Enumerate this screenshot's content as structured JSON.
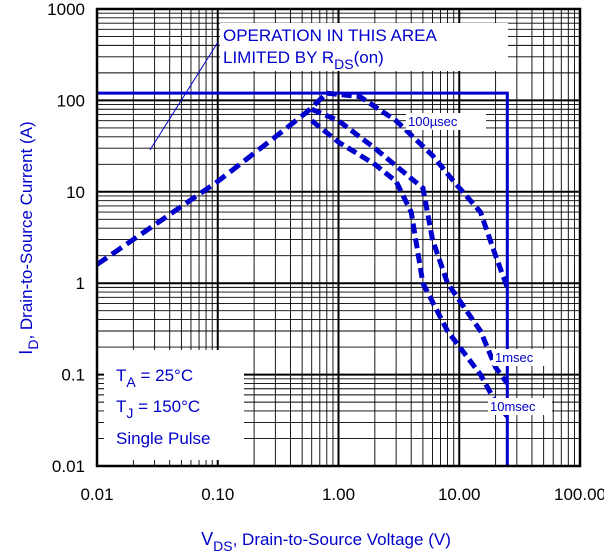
{
  "chart_data": {
    "type": "line",
    "x_scale": "log",
    "y_scale": "log",
    "xlim": [
      0.01,
      100
    ],
    "ylim": [
      0.01,
      1000
    ],
    "grid": true,
    "xlabel": {
      "main": "V",
      "sub": "DS",
      "rest": ", Drain-to-Source Voltage (V)"
    },
    "ylabel": {
      "main": "I",
      "sub": "D",
      "rest": ",  Drain-to-Source Current (A)"
    },
    "xticks": [
      {
        "value": 0.01,
        "label": "0.01"
      },
      {
        "value": 0.1,
        "label": "0.10"
      },
      {
        "value": 1,
        "label": "1.00"
      },
      {
        "value": 10,
        "label": "10.00"
      },
      {
        "value": 100,
        "label": "100.00"
      }
    ],
    "yticks": [
      {
        "value": 0.01,
        "label": "0.01"
      },
      {
        "value": 0.1,
        "label": "0.1"
      },
      {
        "value": 1,
        "label": "1"
      },
      {
        "value": 10,
        "label": "10"
      },
      {
        "value": 100,
        "label": "100"
      },
      {
        "value": 1000,
        "label": "1000"
      }
    ],
    "limits": {
      "current_limit_A": 120,
      "voltage_limit_V": 25,
      "rds_on_line": [
        [
          0.01,
          1.6
        ],
        [
          0.1,
          13
        ],
        [
          0.3,
          40
        ],
        [
          0.55,
          75
        ],
        [
          0.8,
          120
        ]
      ]
    },
    "series": [
      {
        "name": "100µsec",
        "points": [
          [
            0.8,
            120
          ],
          [
            1.5,
            110
          ],
          [
            3,
            60
          ],
          [
            6,
            25
          ],
          [
            9,
            13
          ],
          [
            15,
            6
          ],
          [
            20,
            2
          ],
          [
            25,
            0.9
          ]
        ]
      },
      {
        "name": "1msec",
        "points": [
          [
            0.6,
            80
          ],
          [
            1,
            60
          ],
          [
            2,
            30
          ],
          [
            4,
            14
          ],
          [
            5,
            11
          ],
          [
            6,
            3
          ],
          [
            8,
            1
          ],
          [
            15,
            0.3
          ],
          [
            20,
            0.12
          ],
          [
            25,
            0.08
          ]
        ]
      },
      {
        "name": "10msec",
        "points": [
          [
            0.6,
            60
          ],
          [
            1,
            35
          ],
          [
            2,
            20
          ],
          [
            3,
            13
          ],
          [
            4,
            6
          ],
          [
            5,
            1
          ],
          [
            8,
            0.3
          ],
          [
            15,
            0.1
          ],
          [
            20,
            0.05
          ],
          [
            25,
            0.035
          ]
        ]
      }
    ],
    "annotations": {
      "limited_area": {
        "line1": "OPERATION IN THIS AREA",
        "line2_pre": "LIMITED BY R",
        "line2_sub": "DS",
        "line2_post": "(on)"
      },
      "conditions": {
        "ta_main": "T",
        "ta_sub": "A",
        "ta_rest": " = 25°C",
        "tj_main": "T",
        "tj_sub": "J",
        "tj_rest": " = 150°C",
        "pulse": "Single Pulse"
      }
    },
    "colors": {
      "curve": "#0000cc",
      "grid": "#000000",
      "background": "#ffffff"
    }
  }
}
